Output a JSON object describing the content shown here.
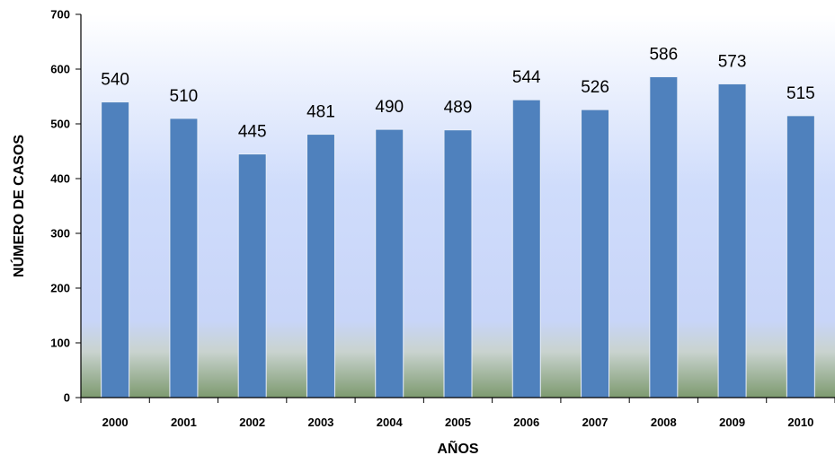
{
  "chart_data": {
    "type": "bar",
    "title": "",
    "xlabel": "AÑOS",
    "ylabel": "NÚMERO DE CASOS",
    "categories": [
      "2000",
      "2001",
      "2002",
      "2003",
      "2004",
      "2005",
      "2006",
      "2007",
      "2008",
      "2009",
      "2010"
    ],
    "values": [
      540,
      510,
      445,
      481,
      490,
      489,
      544,
      526,
      586,
      573,
      515
    ],
    "value_labels": [
      "540",
      "510",
      "445",
      "481",
      "490",
      "489",
      "544",
      "526",
      "586",
      "573",
      "515"
    ],
    "ylim": [
      0,
      700
    ],
    "yticks": [
      "0",
      "100",
      "200",
      "300",
      "400",
      "500",
      "600",
      "700"
    ],
    "grid": false,
    "legend": "none",
    "colors": {
      "bar": "#4f81bd",
      "bar_edge": "#3a6aa3",
      "plot_bg_top": "#ffffff",
      "plot_bg_mid": "#cad6fb",
      "plot_bg_bottom": "#7d9a6f",
      "axis": "#000000",
      "text": "#000000"
    }
  }
}
